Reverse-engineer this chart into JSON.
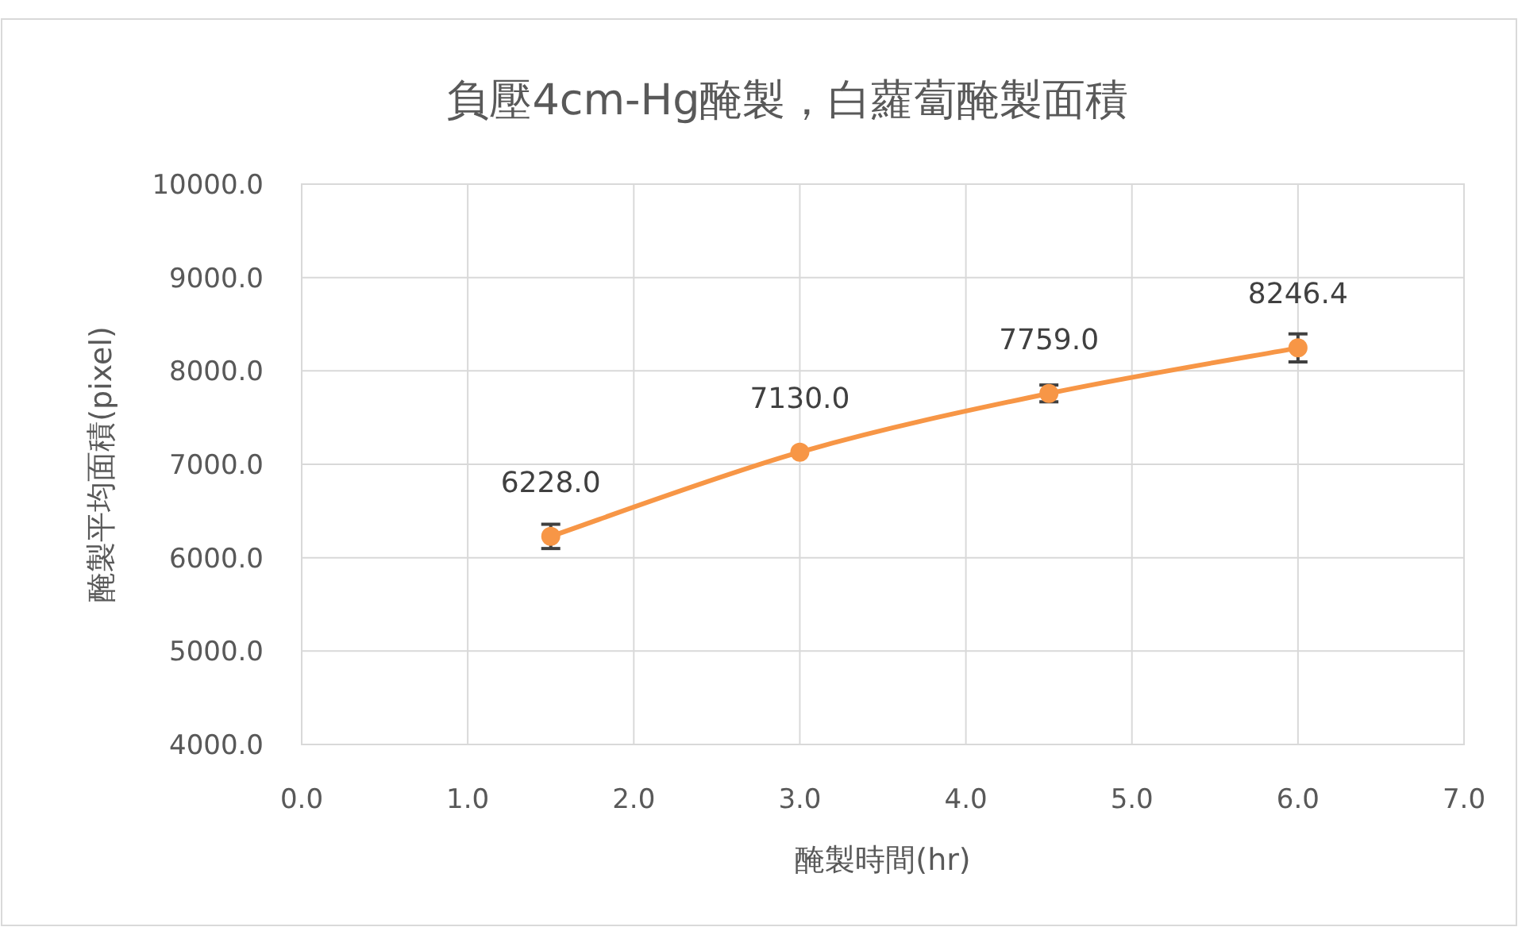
{
  "chart_data": {
    "type": "line",
    "title": "負壓4cm-Hg醃製，白蘿蔔醃製面積",
    "xlabel": "醃製時間(hr)",
    "ylabel": "醃製平均面積(pixel)",
    "x": [
      1.5,
      3.0,
      4.5,
      6.0
    ],
    "series": [
      {
        "color": "#f79646",
        "values": [
          6228.0,
          7130.0,
          7759.0,
          8246.4
        ],
        "errors": [
          130,
          null,
          90,
          150
        ],
        "value_labels": [
          "6228.0",
          "7130.0",
          "7759.0",
          "8246.4"
        ]
      }
    ],
    "xlim": [
      0,
      7
    ],
    "ylim": [
      4000,
      10000
    ],
    "xticks": [
      {
        "value": 0,
        "label": "0.0"
      },
      {
        "value": 1,
        "label": "1.0"
      },
      {
        "value": 2,
        "label": "2.0"
      },
      {
        "value": 3,
        "label": "3.0"
      },
      {
        "value": 4,
        "label": "4.0"
      },
      {
        "value": 5,
        "label": "5.0"
      },
      {
        "value": 6,
        "label": "6.0"
      },
      {
        "value": 7,
        "label": "7.0"
      }
    ],
    "yticks": [
      {
        "value": 4000,
        "label": "4000.0"
      },
      {
        "value": 5000,
        "label": "5000.0"
      },
      {
        "value": 6000,
        "label": "6000.0"
      },
      {
        "value": 7000,
        "label": "7000.0"
      },
      {
        "value": 8000,
        "label": "8000.0"
      },
      {
        "value": 9000,
        "label": "9000.0"
      },
      {
        "value": 10000,
        "label": "10000.0"
      }
    ],
    "grid": true,
    "marker": "circle",
    "line_style": "solid"
  }
}
